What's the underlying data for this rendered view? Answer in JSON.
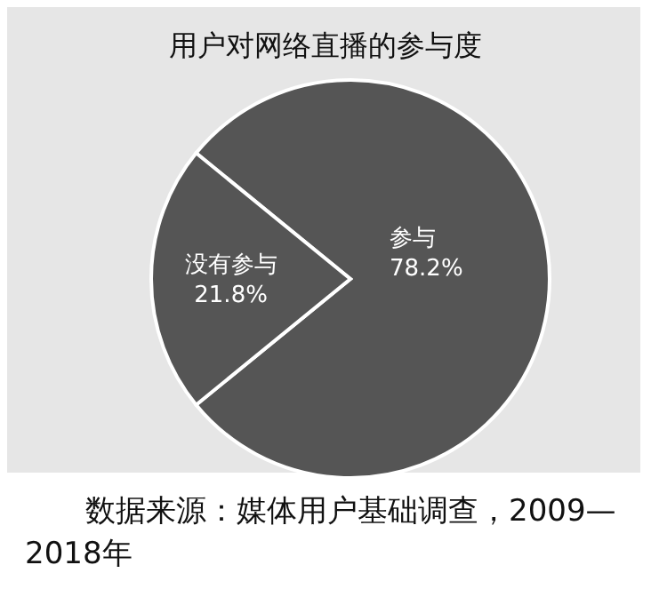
{
  "chart_data": {
    "type": "pie",
    "title": "用户对网络直播的参与度",
    "categories": [
      "参与",
      "没有参与"
    ],
    "values": [
      78.2,
      21.8
    ],
    "value_labels": [
      "78.2%",
      "21.8%"
    ],
    "colors": [
      "#555555",
      "#555555"
    ],
    "annotations": [
      "数据来源：媒体用户基础调查，2009—2018年"
    ]
  }
}
